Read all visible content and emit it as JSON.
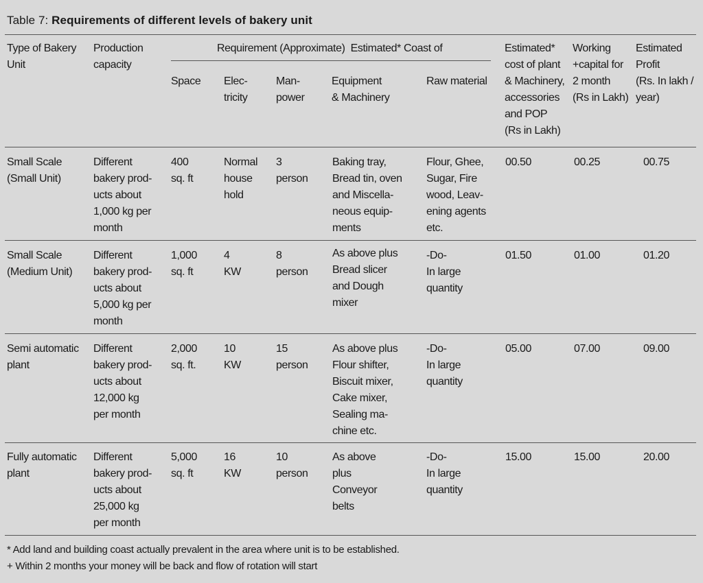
{
  "table": {
    "title_prefix": "Table 7: ",
    "title_bold": "Requirements of different levels of bakery unit",
    "headers": {
      "type": "Type of Bakery\nUnit",
      "production": "Production\ncapacity",
      "requirement_group": "Requirement (Approximate)  Estimated* Coast of",
      "space": "Space",
      "electricity": "Elec-\ntricity",
      "manpower": "Man-\npower",
      "equipment": "Equipment\n& Machinery",
      "raw_material": "Raw material",
      "plant_cost": "Estimated*\ncost of plant\n& Machinery,\naccessories\nand POP\n(Rs in Lakh)",
      "working_capital": "Working\n+capital for\n2 month\n(Rs in Lakh)",
      "profit": "Estimated\nProfit\n(Rs. In lakh /\nyear)"
    },
    "rows": [
      {
        "type": "Small Scale\n(Small Unit)",
        "production": "Different\nbakery prod-\nucts about\n1,000 kg per\nmonth",
        "space": "400\nsq. ft",
        "electricity": "Normal\nhouse\nhold",
        "manpower": "3\nperson",
        "equipment": "Baking tray,\nBread tin, oven\nand Miscella-\nneous equip-\nments",
        "raw_material": "Flour, Ghee,\nSugar, Fire\nwood, Leav-\nening agents\netc.",
        "plant_cost": "00.50",
        "working_capital": "00.25",
        "profit": "00.75"
      },
      {
        "type": "Small Scale\n(Medium Unit)",
        "production": "Different\nbakery prod-\nucts about\n5,000 kg per\nmonth",
        "space": "1,000\nsq.  ft",
        "electricity": "4\nKW",
        "manpower": "8\nperson",
        "equipment": "As above plus\nBread slicer\nand Dough\nmixer",
        "raw_material": "-Do-\nIn large\nquantity",
        "plant_cost": "01.50",
        "working_capital": "01.00",
        "profit": "01.20"
      },
      {
        "type": "Semi automatic\nplant",
        "production": "Different\nbakery prod-\nucts about\n12,000 kg\nper month",
        "space": "2,000\nsq.  ft.",
        "electricity": "10\nKW",
        "manpower": "15\nperson",
        "equipment": "As above plus\nFlour shifter,\nBiscuit mixer,\nCake mixer,\nSealing ma-\nchine etc.",
        "raw_material": "-Do-\nIn large\nquantity",
        "plant_cost": "05.00",
        "working_capital": "07.00",
        "profit": "09.00"
      },
      {
        "type": "Fully automatic\nplant",
        "production": "Different\nbakery prod-\nucts about\n25,000 kg\nper month",
        "space": "5,000\nsq.  ft",
        "electricity": "16\nKW",
        "manpower": "10\nperson",
        "equipment": "As above\nplus\nConveyor\nbelts",
        "raw_material": "-Do-\nIn large\nquantity",
        "plant_cost": "15.00",
        "working_capital": "15.00",
        "profit": "20.00"
      }
    ],
    "footnotes": [
      "* Add land and building coast actually prevalent in the area where unit is to be established.",
      "+ Within 2 months your money will be back and flow of rotation will start"
    ]
  }
}
